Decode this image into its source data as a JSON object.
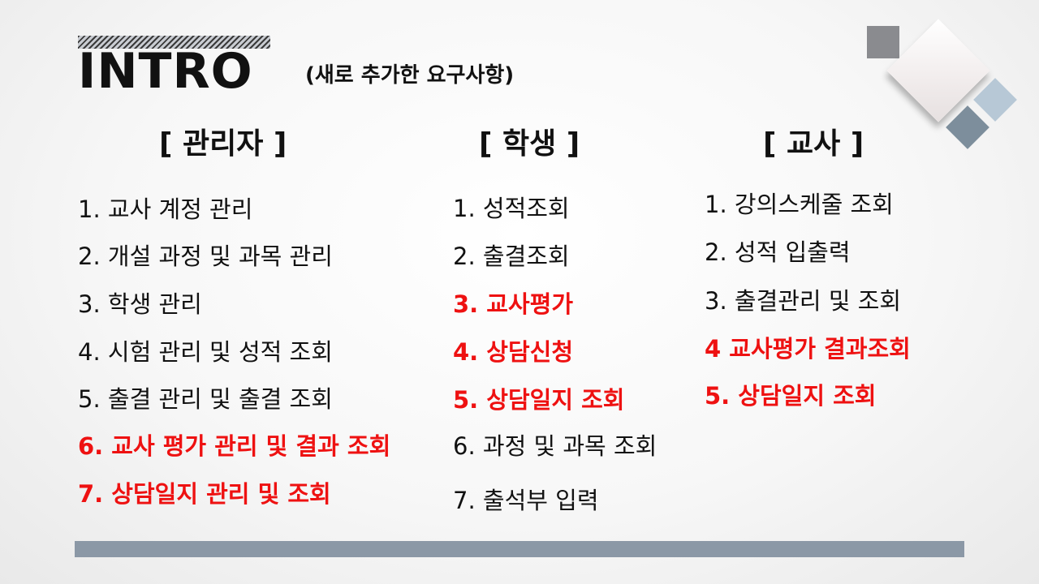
{
  "slide": {
    "title": "INTRO",
    "subtitle": "(새로 추가한 요구사항)"
  },
  "columns": {
    "admin": {
      "header": "[ 관리자 ]",
      "items": [
        {
          "text": "1. 교사 계정 관리",
          "highlight": false
        },
        {
          "text": "2. 개설 과정 및 과목 관리",
          "highlight": false
        },
        {
          "text": "3. 학생 관리",
          "highlight": false
        },
        {
          "text": "4. 시험 관리 및 성적 조회",
          "highlight": false
        },
        {
          "text": "5. 출결 관리 및 출결 조회",
          "highlight": false
        },
        {
          "text": "6. 교사 평가 관리 및 결과 조회",
          "highlight": true
        },
        {
          "text": "7. 상담일지 관리 및 조회",
          "highlight": true
        }
      ]
    },
    "student": {
      "header": "[ 학생 ]",
      "items": [
        {
          "text": "1. 성적조회",
          "highlight": false
        },
        {
          "text": "2. 출결조회",
          "highlight": false
        },
        {
          "text": "3. 교사평가",
          "highlight": true
        },
        {
          "text": "4. 상담신청",
          "highlight": true
        },
        {
          "text": "5. 상담일지 조회",
          "highlight": true
        },
        {
          "text": "6. 과정 및 과목 조회",
          "highlight": false
        },
        {
          "text": "7. 출석부 입력",
          "highlight": false
        }
      ]
    },
    "teacher": {
      "header": "[ 교사 ]",
      "items": [
        {
          "text": "1. 강의스케줄 조회",
          "highlight": false
        },
        {
          "text": "2. 성적 입출력",
          "highlight": false
        },
        {
          "text": "3. 출결관리 및 조회",
          "highlight": false
        },
        {
          "text": "4 교사평가 결과조회",
          "highlight": true
        },
        {
          "text": "5. 상담일지 조회",
          "highlight": true
        }
      ]
    }
  },
  "colors": {
    "text": "#111111",
    "highlight": "#ee1111",
    "bottom_bar": "#8b98a6",
    "deco_gray": "#8a8b8f",
    "deco_light_blue": "#b7c8d6",
    "deco_dark_blue": "#7d8e9c"
  }
}
